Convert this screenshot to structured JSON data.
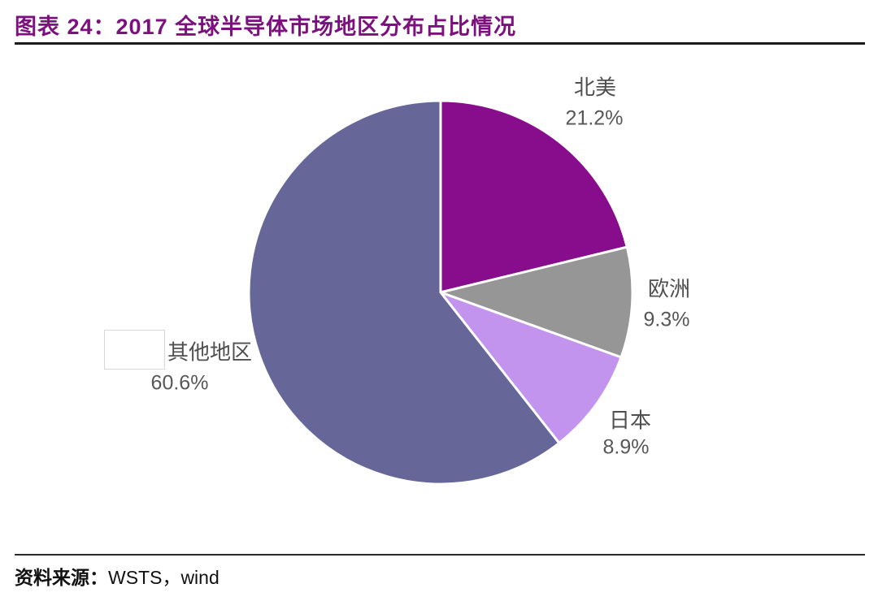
{
  "header": {
    "title": "图表 24：2017 全球半导体市场地区分布占比情况"
  },
  "footer": {
    "source_label": "资料来源：",
    "source_value": "WSTS，wind"
  },
  "chart_data": {
    "type": "pie",
    "title": "2017 全球半导体市场地区分布占比情况",
    "unit": "%",
    "start_angle_deg": 0,
    "direction": "clockwise",
    "legend_position": "outside-labels",
    "slice_border_color": "#ffffff",
    "slices": [
      {
        "id": "north-america",
        "label": "北美",
        "value": 21.2,
        "display": "21.2%",
        "color": "#870D8C"
      },
      {
        "id": "europe",
        "label": "欧洲",
        "value": 9.3,
        "display": "9.3%",
        "color": "#969696"
      },
      {
        "id": "japan",
        "label": "日本",
        "value": 8.9,
        "display": "8.9%",
        "color": "#C294EE"
      },
      {
        "id": "other-regions",
        "label": "其他地区",
        "value": 60.6,
        "display": "60.6%",
        "color": "#666698"
      }
    ]
  }
}
